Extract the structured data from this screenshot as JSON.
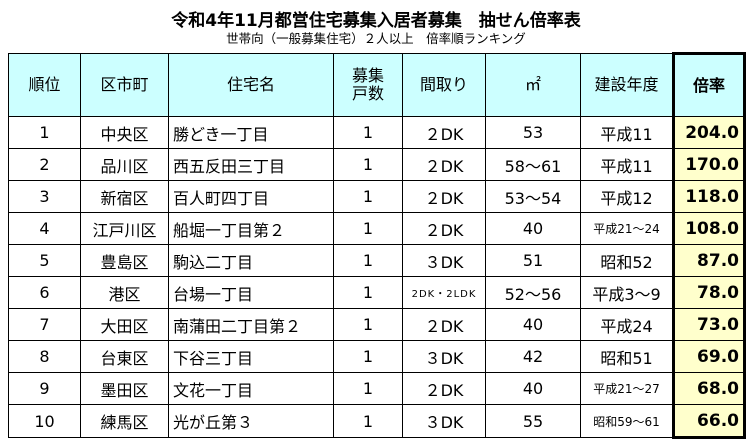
{
  "header": {
    "title": "令和4年11月都営住宅募集入居者募集　抽せん倍率表",
    "subtitle": "世帯向（一般募集住宅）２人以上　倍率順ランキング"
  },
  "table": {
    "columns": [
      "順位",
      "区市町",
      "住宅名",
      "募集戸数",
      "間取り",
      "㎡",
      "建設年度",
      "倍率"
    ],
    "rows": [
      [
        "1",
        "中央区",
        "勝どき一丁目",
        "1",
        "２DK",
        "53",
        "平成11",
        "204.0"
      ],
      [
        "2",
        "品川区",
        "西五反田三丁目",
        "1",
        "２DK",
        "58～61",
        "平成11",
        "170.0"
      ],
      [
        "3",
        "新宿区",
        "百人町四丁目",
        "1",
        "２DK",
        "53～54",
        "平成12",
        "118.0"
      ],
      [
        "4",
        "江戸川区",
        "船堀一丁目第２",
        "1",
        "２DK",
        "40",
        "平成21～24",
        "108.0"
      ],
      [
        "5",
        "豊島区",
        "駒込二丁目",
        "1",
        "３DK",
        "51",
        "昭和52",
        "87.0"
      ],
      [
        "6",
        "港区",
        "台場一丁目",
        "1",
        "2DK・2LDK",
        "52～56",
        "平成3～9",
        "78.0"
      ],
      [
        "7",
        "大田区",
        "南蒲田二丁目第２",
        "1",
        "２DK",
        "40",
        "平成24",
        "73.0"
      ],
      [
        "8",
        "台東区",
        "下谷三丁目",
        "1",
        "３DK",
        "42",
        "昭和51",
        "69.0"
      ],
      [
        "9",
        "墨田区",
        "文花一丁目",
        "1",
        "２DK",
        "40",
        "平成21～27",
        "68.0"
      ],
      [
        "10",
        "練馬区",
        "光が丘第３",
        "1",
        "３DK",
        "55",
        "昭和59～61",
        "66.0"
      ]
    ]
  }
}
